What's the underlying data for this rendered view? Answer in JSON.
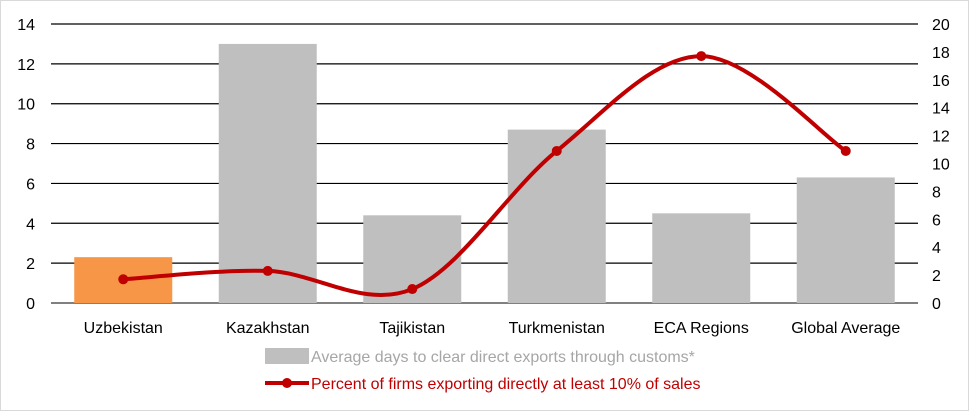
{
  "chart_data": {
    "type": "bar",
    "categories": [
      "Uzbekistan",
      "Kazakhstan",
      "Tajikistan",
      "Turkmenistan",
      "ECA Regions",
      "Global Average"
    ],
    "series": [
      {
        "name": "Average days to clear direct exports through customs*",
        "type": "bar",
        "axis": "left",
        "values": [
          2.3,
          13.0,
          4.4,
          8.7,
          4.5,
          6.3
        ],
        "color": "#bfbfbf",
        "highlight": {
          "index": 0,
          "color": "#f79646"
        }
      },
      {
        "name": "Percent of firms exporting directly at least 10% of sales",
        "type": "line",
        "axis": "right",
        "values": [
          1.7,
          2.3,
          1.0,
          10.9,
          17.7,
          10.9
        ],
        "color": "#c00000"
      }
    ],
    "y_left": {
      "min": 0,
      "max": 14,
      "ticks": [
        0,
        2,
        4,
        6,
        8,
        10,
        12,
        14
      ]
    },
    "y_right": {
      "min": 0,
      "max": 20,
      "ticks": [
        0,
        2,
        4,
        6,
        8,
        10,
        12,
        14,
        16,
        18,
        20
      ]
    },
    "grid": true,
    "legend_position": "bottom",
    "title": "",
    "xlabel": "",
    "ylabel": ""
  }
}
